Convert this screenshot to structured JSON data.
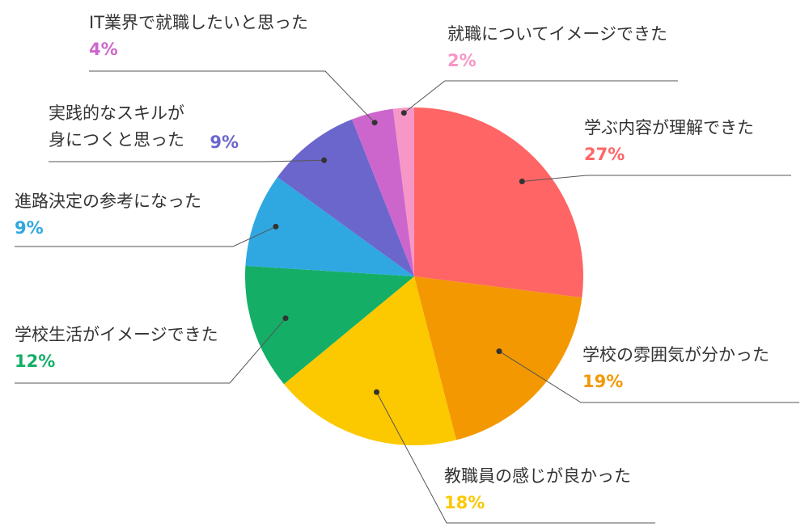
{
  "chart_data": {
    "type": "pie",
    "start_angle_deg": 0,
    "direction": "clockwise",
    "legend": "none",
    "slices": [
      {
        "label": "学ぶ内容が理解できた",
        "value": 27,
        "display": "27%",
        "color": "#ff6565"
      },
      {
        "label": "学校の雰囲気が分かった",
        "value": 19,
        "display": "19%",
        "color": "#f39800"
      },
      {
        "label": "教職員の感じが良かった",
        "value": 18,
        "display": "18%",
        "color": "#fcc800"
      },
      {
        "label": "学校生活がイメージできた",
        "value": 12,
        "display": "12%",
        "color": "#14ae67"
      },
      {
        "label": "進路決定の参考になった",
        "value": 9,
        "display": "9%",
        "color": "#2fa8e1"
      },
      {
        "label": [
          "実践的なスキルが",
          "身につくと思った"
        ],
        "value": 9,
        "display": "9%",
        "color": "#6b66cc"
      },
      {
        "label": "IT業界で就職したいと思った",
        "value": 4,
        "display": "4%",
        "color": "#cc66cc"
      },
      {
        "label": "就職についてイメージできた",
        "value": 2,
        "display": "2%",
        "color": "#f797c7"
      }
    ]
  }
}
